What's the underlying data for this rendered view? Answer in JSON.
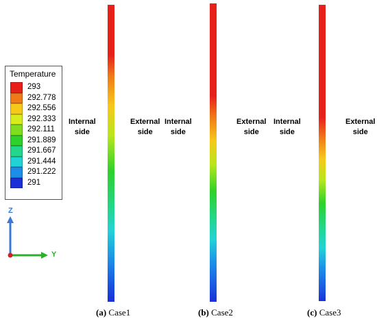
{
  "legend": {
    "title": "Temperature",
    "entries": [
      {
        "label": "293",
        "color": "#e8201a"
      },
      {
        "label": "292.778",
        "color": "#f07a18"
      },
      {
        "label": "292.556",
        "color": "#f6c81a"
      },
      {
        "label": "292.333",
        "color": "#d6ec1c"
      },
      {
        "label": "292.111",
        "color": "#7fdd1e"
      },
      {
        "label": "291.889",
        "color": "#2ed12a"
      },
      {
        "label": "291.667",
        "color": "#22d68a"
      },
      {
        "label": "291.444",
        "color": "#22d3d6"
      },
      {
        "label": "291.222",
        "color": "#1c8ee8"
      },
      {
        "label": "291",
        "color": "#1a2fd8"
      }
    ]
  },
  "panels": [
    {
      "internal_label": "Internal\nside",
      "external_label": "External\nside",
      "caption_letter": "(a)",
      "caption_text": " Case1"
    },
    {
      "internal_label": "Internal\nside",
      "external_label": "External\nside",
      "caption_letter": "(b)",
      "caption_text": " Case2"
    },
    {
      "internal_label": "Internal\nside",
      "external_label": "External\nside",
      "caption_letter": "(c)",
      "caption_text": " Case3"
    }
  ],
  "axes": {
    "z_label": "Z",
    "y_label": "Y",
    "z_color": "#3a78d8",
    "y_color": "#2bb02b",
    "origin_color": "#d0202a"
  }
}
